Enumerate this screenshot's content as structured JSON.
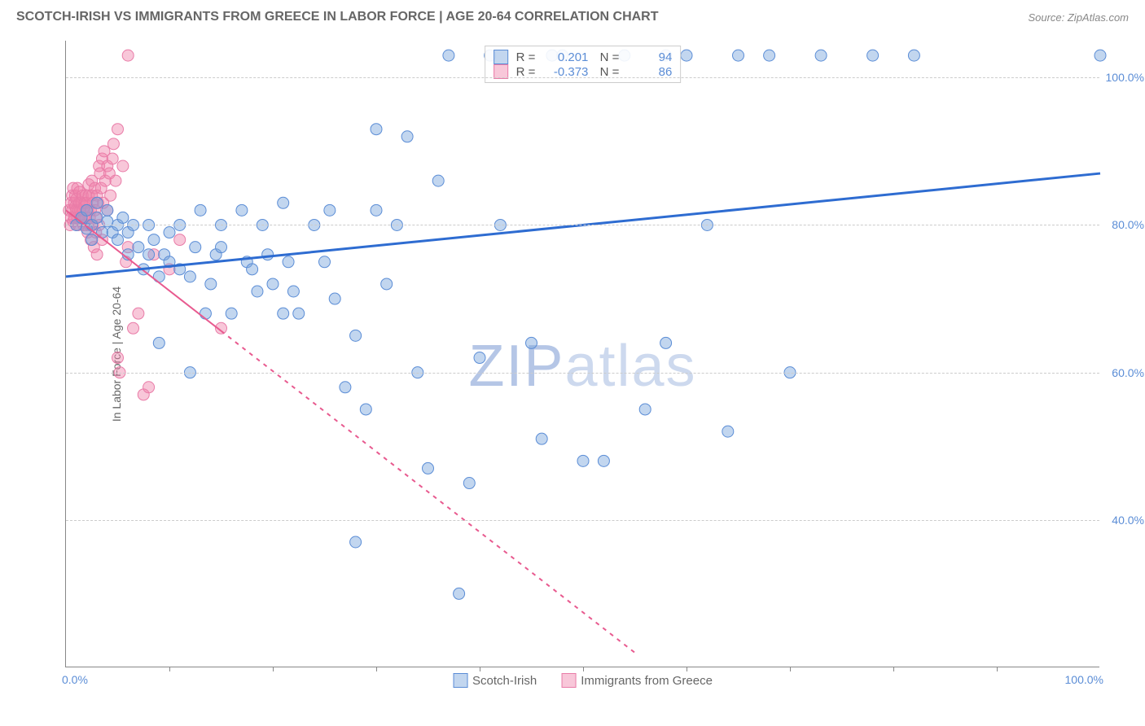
{
  "header": {
    "title": "SCOTCH-IRISH VS IMMIGRANTS FROM GREECE IN LABOR FORCE | AGE 20-64 CORRELATION CHART",
    "source": "Source: ZipAtlas.com"
  },
  "axis": {
    "y_label": "In Labor Force | Age 20-64",
    "x_min": 0,
    "x_max": 100,
    "y_min": 20,
    "y_max": 105,
    "x_label_left": "0.0%",
    "x_label_right": "100.0%",
    "y_ticks": [
      {
        "v": 40,
        "label": "40.0%"
      },
      {
        "v": 60,
        "label": "60.0%"
      },
      {
        "v": 80,
        "label": "80.0%"
      },
      {
        "v": 100,
        "label": "100.0%"
      }
    ],
    "x_ticks": [
      10,
      20,
      30,
      40,
      50,
      60,
      70,
      80,
      90
    ],
    "label_color": "#5b8dd6",
    "grid_color": "#cccccc"
  },
  "series": {
    "scotch": {
      "name": "Scotch-Irish",
      "color": "#5b8dd6",
      "fill": "rgba(120,165,220,0.45)",
      "stroke": "#5b8dd6",
      "marker_r": 7,
      "R": "0.201",
      "N": "94",
      "trend": {
        "x1": 0,
        "y1": 73,
        "x2": 100,
        "y2": 87,
        "color": "#2e6cd1",
        "width": 3,
        "dash": "none"
      },
      "points": [
        [
          1,
          80
        ],
        [
          1.5,
          81
        ],
        [
          2,
          79.5
        ],
        [
          2,
          82
        ],
        [
          2.5,
          80
        ],
        [
          2.5,
          78
        ],
        [
          3,
          81
        ],
        [
          3,
          83
        ],
        [
          3.5,
          79
        ],
        [
          4,
          80.5
        ],
        [
          4,
          82
        ],
        [
          4.5,
          79
        ],
        [
          5,
          80
        ],
        [
          5,
          78
        ],
        [
          5.5,
          81
        ],
        [
          6,
          76
        ],
        [
          6,
          79
        ],
        [
          6.5,
          80
        ],
        [
          7,
          77
        ],
        [
          7.5,
          74
        ],
        [
          8,
          80
        ],
        [
          8,
          76
        ],
        [
          8.5,
          78
        ],
        [
          9,
          73
        ],
        [
          9,
          64
        ],
        [
          9.5,
          76
        ],
        [
          10,
          75
        ],
        [
          10,
          79
        ],
        [
          11,
          80
        ],
        [
          11,
          74
        ],
        [
          12,
          60
        ],
        [
          12,
          73
        ],
        [
          12.5,
          77
        ],
        [
          13,
          82
        ],
        [
          13.5,
          68
        ],
        [
          14,
          72
        ],
        [
          14.5,
          76
        ],
        [
          15,
          80
        ],
        [
          15,
          77
        ],
        [
          16,
          68
        ],
        [
          17,
          82
        ],
        [
          17.5,
          75
        ],
        [
          18,
          74
        ],
        [
          18.5,
          71
        ],
        [
          19,
          80
        ],
        [
          19.5,
          76
        ],
        [
          20,
          72
        ],
        [
          21,
          83
        ],
        [
          21,
          68
        ],
        [
          21.5,
          75
        ],
        [
          22,
          71
        ],
        [
          22.5,
          68
        ],
        [
          24,
          80
        ],
        [
          25,
          75
        ],
        [
          25.5,
          82
        ],
        [
          26,
          70
        ],
        [
          27,
          58
        ],
        [
          28,
          37
        ],
        [
          28,
          65
        ],
        [
          29,
          55
        ],
        [
          30,
          82
        ],
        [
          30,
          93
        ],
        [
          31,
          72
        ],
        [
          32,
          80
        ],
        [
          33,
          92
        ],
        [
          34,
          60
        ],
        [
          35,
          47
        ],
        [
          36,
          86
        ],
        [
          37,
          103
        ],
        [
          38,
          30
        ],
        [
          39,
          45
        ],
        [
          40,
          62
        ],
        [
          41,
          103
        ],
        [
          42,
          80
        ],
        [
          45,
          64
        ],
        [
          46,
          51
        ],
        [
          47,
          103
        ],
        [
          48,
          103
        ],
        [
          50,
          48
        ],
        [
          52,
          48
        ],
        [
          54,
          103
        ],
        [
          56,
          55
        ],
        [
          58,
          64
        ],
        [
          58,
          103
        ],
        [
          60,
          103
        ],
        [
          62,
          80
        ],
        [
          64,
          52
        ],
        [
          65,
          103
        ],
        [
          68,
          103
        ],
        [
          70,
          60
        ],
        [
          73,
          103
        ],
        [
          78,
          103
        ],
        [
          82,
          103
        ],
        [
          100,
          103
        ]
      ]
    },
    "greece": {
      "name": "Immigrants from Greece",
      "color": "#e91e63",
      "fill": "rgba(240,130,170,0.45)",
      "stroke": "#e97ca8",
      "marker_r": 7,
      "R": "-0.373",
      "N": "86",
      "trend": {
        "x1": 0,
        "y1": 82,
        "x2": 55,
        "y2": 22,
        "color": "#e85a8f",
        "width": 2,
        "dash_start": 15,
        "dash": "5,6"
      },
      "points": [
        [
          0.3,
          82
        ],
        [
          0.4,
          80
        ],
        [
          0.5,
          83
        ],
        [
          0.5,
          81
        ],
        [
          0.6,
          84
        ],
        [
          0.6,
          82
        ],
        [
          0.7,
          80.5
        ],
        [
          0.7,
          85
        ],
        [
          0.8,
          83
        ],
        [
          0.8,
          81
        ],
        [
          0.9,
          82.5
        ],
        [
          0.9,
          84
        ],
        [
          1,
          80
        ],
        [
          1,
          82
        ],
        [
          1,
          83.5
        ],
        [
          1.1,
          81
        ],
        [
          1.1,
          85
        ],
        [
          1.2,
          82
        ],
        [
          1.2,
          80
        ],
        [
          1.3,
          83
        ],
        [
          1.3,
          84.5
        ],
        [
          1.4,
          81
        ],
        [
          1.4,
          82
        ],
        [
          1.5,
          80.5
        ],
        [
          1.5,
          83
        ],
        [
          1.6,
          84
        ],
        [
          1.6,
          82
        ],
        [
          1.7,
          81
        ],
        [
          1.7,
          80
        ],
        [
          1.8,
          83
        ],
        [
          1.8,
          82.5
        ],
        [
          1.9,
          84
        ],
        [
          1.9,
          81
        ],
        [
          2,
          80
        ],
        [
          2,
          83
        ],
        [
          2.1,
          82
        ],
        [
          2.1,
          79
        ],
        [
          2.2,
          84
        ],
        [
          2.2,
          85.5
        ],
        [
          2.3,
          81
        ],
        [
          2.3,
          80
        ],
        [
          2.4,
          82
        ],
        [
          2.4,
          78
        ],
        [
          2.5,
          84
        ],
        [
          2.5,
          86
        ],
        [
          2.6,
          83
        ],
        [
          2.6,
          80
        ],
        [
          2.7,
          77
        ],
        [
          2.8,
          82
        ],
        [
          2.8,
          85
        ],
        [
          2.9,
          79
        ],
        [
          2.9,
          81
        ],
        [
          3,
          84
        ],
        [
          3,
          76
        ],
        [
          3.1,
          83
        ],
        [
          3.2,
          88
        ],
        [
          3.2,
          80
        ],
        [
          3.3,
          87
        ],
        [
          3.4,
          85
        ],
        [
          3.5,
          78
        ],
        [
          3.5,
          89
        ],
        [
          3.6,
          83
        ],
        [
          3.7,
          90
        ],
        [
          3.8,
          86
        ],
        [
          4,
          88
        ],
        [
          4,
          82
        ],
        [
          4.2,
          87
        ],
        [
          4.3,
          84
        ],
        [
          4.5,
          89
        ],
        [
          4.6,
          91
        ],
        [
          4.8,
          86
        ],
        [
          5,
          93
        ],
        [
          5,
          62
        ],
        [
          5.2,
          60
        ],
        [
          5.5,
          88
        ],
        [
          5.8,
          75
        ],
        [
          6,
          103
        ],
        [
          6,
          77
        ],
        [
          6.5,
          66
        ],
        [
          7,
          68
        ],
        [
          7.5,
          57
        ],
        [
          8,
          58
        ],
        [
          8.5,
          76
        ],
        [
          10,
          74
        ],
        [
          11,
          78
        ],
        [
          15,
          66
        ]
      ]
    }
  },
  "legend_bottom": [
    "Scotch-Irish",
    "Immigrants from Greece"
  ],
  "watermark": {
    "zip": "ZIP",
    "atlas": "atlas"
  }
}
